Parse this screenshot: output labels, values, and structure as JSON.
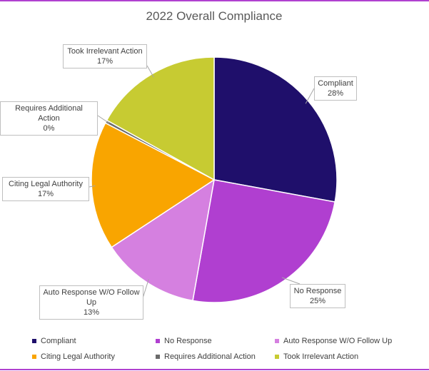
{
  "chart_data": {
    "type": "pie",
    "title": "2022 Overall Compliance",
    "categories": [
      "Compliant",
      "No Response",
      "Auto Response W/O Follow Up",
      "Citing Legal Authority",
      "Requires Additional Action",
      "Took Irrelevant Action"
    ],
    "values": [
      28,
      25,
      13,
      17,
      0.4,
      17
    ],
    "value_labels": [
      "28%",
      "25%",
      "13%",
      "17%",
      "0%",
      "17%"
    ],
    "colors": [
      "#1f0f6b",
      "#b03fd0",
      "#d580e0",
      "#f9a500",
      "#6b6b6b",
      "#c7cb32"
    ]
  }
}
